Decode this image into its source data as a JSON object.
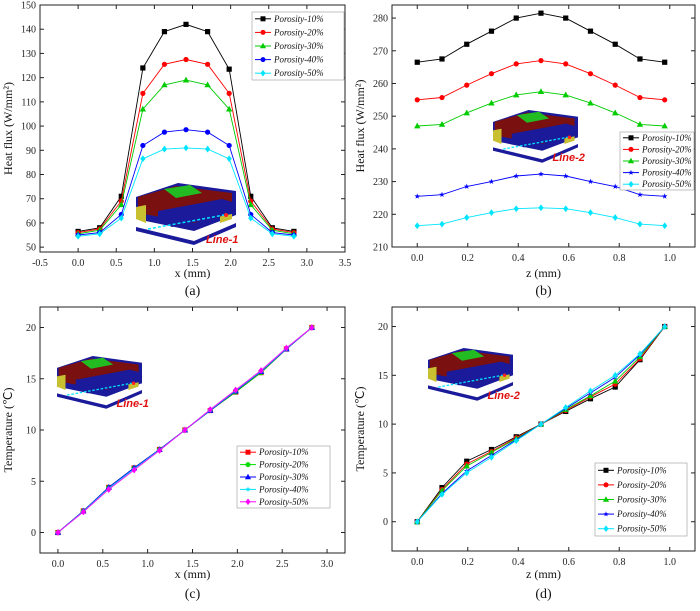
{
  "chart_data": [
    {
      "id": "a",
      "type": "line",
      "panel_label": "(a)",
      "xlabel": "x (mm)",
      "ylabel": "Heat flux (W/mm²)",
      "xlim": [
        -0.5,
        3.5
      ],
      "ylim": [
        48,
        150
      ],
      "xticks": [
        -0.5,
        0.0,
        0.5,
        1.0,
        1.5,
        2.0,
        2.5,
        3.0,
        3.5
      ],
      "xtick_labels": [
        "-0.5",
        "0.0",
        "0.5",
        "1.0",
        "1.5",
        "2.0",
        "2.5",
        "3.0",
        "3.5"
      ],
      "yticks": [
        50,
        60,
        70,
        80,
        90,
        100,
        110,
        120,
        130,
        140,
        150
      ],
      "ytick_labels": [
        "50",
        "60",
        "70",
        "80",
        "90",
        "100",
        "110",
        "120",
        "130",
        "140",
        "150"
      ],
      "legend_position": "top-right",
      "inset_label": "Line-1",
      "x": [
        0.0,
        0.283,
        0.566,
        0.849,
        1.132,
        1.415,
        1.698,
        1.981,
        2.264,
        2.547,
        2.83
      ],
      "series": [
        {
          "name": "Porosity-10%",
          "color": "#000000",
          "marker": "square",
          "values": [
            56.5,
            58,
            71,
            124,
            139,
            142,
            139,
            123.5,
            71,
            58,
            56.5
          ]
        },
        {
          "name": "Porosity-20%",
          "color": "#ff0000",
          "marker": "circle",
          "values": [
            56,
            57.5,
            69,
            113.5,
            125.5,
            127.5,
            125.5,
            113.5,
            69,
            57.5,
            56
          ]
        },
        {
          "name": "Porosity-30%",
          "color": "#00cc00",
          "marker": "triangle",
          "values": [
            55.5,
            57,
            67.5,
            107,
            117,
            119,
            117,
            107,
            67.5,
            57,
            55.5
          ]
        },
        {
          "name": "Porosity-40%",
          "color": "#0000ff",
          "marker": "circle",
          "values": [
            55,
            56,
            63.5,
            92,
            97.5,
            98.5,
            97.5,
            92,
            63.5,
            56,
            55
          ]
        },
        {
          "name": "Porosity-50%",
          "color": "#00e5ff",
          "marker": "diamond",
          "values": [
            54.5,
            55.5,
            62,
            86.5,
            90.5,
            91,
            90.5,
            86.5,
            62,
            55.5,
            54.5
          ]
        }
      ]
    },
    {
      "id": "b",
      "type": "line",
      "panel_label": "(b)",
      "xlabel": "z (mm)",
      "ylabel": "Heat flux (W/mm²)",
      "xlim": [
        -0.1,
        1.1
      ],
      "ylim": [
        210,
        284
      ],
      "xticks": [
        0.0,
        0.2,
        0.4,
        0.6,
        0.8,
        1.0
      ],
      "xtick_labels": [
        "0.0",
        "0.2",
        "0.4",
        "0.6",
        "0.8",
        "1.0"
      ],
      "yticks": [
        210,
        220,
        230,
        240,
        250,
        260,
        270,
        280
      ],
      "ytick_labels": [
        "210",
        "220",
        "230",
        "240",
        "250",
        "260",
        "270",
        "280"
      ],
      "legend_position": "right",
      "inset_label": "Line-2",
      "x": [
        0.0,
        0.098,
        0.196,
        0.294,
        0.392,
        0.49,
        0.588,
        0.686,
        0.784,
        0.882,
        0.98
      ],
      "series": [
        {
          "name": "Porosity-10%",
          "color": "#000000",
          "marker": "square",
          "values": [
            266.5,
            267.5,
            272,
            276,
            280,
            281.5,
            280,
            276,
            272,
            267.5,
            266.5
          ]
        },
        {
          "name": "Porosity-20%",
          "color": "#ff0000",
          "marker": "circle",
          "values": [
            255,
            255.7,
            259.5,
            263,
            266,
            267,
            266,
            263,
            259.5,
            255.7,
            255
          ]
        },
        {
          "name": "Porosity-30%",
          "color": "#00cc00",
          "marker": "triangle",
          "values": [
            247,
            247.5,
            251,
            254,
            256.5,
            257.5,
            256.5,
            254,
            251,
            247.5,
            247
          ]
        },
        {
          "name": "Porosity-40%",
          "color": "#0000ff",
          "marker": "star",
          "values": [
            225.5,
            226,
            228.5,
            230,
            231.7,
            232.3,
            231.7,
            230,
            228.5,
            226,
            225.5
          ]
        },
        {
          "name": "Porosity-50%",
          "color": "#00e5ff",
          "marker": "diamond",
          "values": [
            216.5,
            217,
            219,
            220.5,
            221.7,
            222,
            221.7,
            220.5,
            219,
            217,
            216.5
          ]
        }
      ]
    },
    {
      "id": "c",
      "type": "line",
      "panel_label": "(c)",
      "xlabel": "x (mm)",
      "ylabel": "Temperature (℃)",
      "xlim": [
        -0.2,
        3.2
      ],
      "ylim": [
        -2,
        22
      ],
      "xticks": [
        0.0,
        0.5,
        1.0,
        1.5,
        2.0,
        2.5,
        3.0
      ],
      "xtick_labels": [
        "0.0",
        "0.5",
        "1.0",
        "1.5",
        "2.0",
        "2.5",
        "3.0"
      ],
      "yticks": [
        0,
        5,
        10,
        15,
        20
      ],
      "ytick_labels": [
        "0",
        "5",
        "10",
        "15",
        "20"
      ],
      "legend_position": "lower-right",
      "inset_label": "Line-1",
      "x": [
        0.0,
        0.283,
        0.566,
        0.849,
        1.132,
        1.415,
        1.698,
        1.981,
        2.264,
        2.547,
        2.83
      ],
      "series": [
        {
          "name": "Porosity-10%",
          "color": "#ff0000",
          "marker": "square",
          "values": [
            0,
            2.1,
            4.4,
            6.3,
            8.1,
            10,
            11.9,
            13.7,
            15.6,
            17.9,
            20
          ]
        },
        {
          "name": "Porosity-20%",
          "color": "#00dd00",
          "marker": "circle",
          "values": [
            0,
            2.1,
            4.4,
            6.3,
            8.1,
            10,
            11.9,
            13.7,
            15.6,
            17.9,
            20
          ]
        },
        {
          "name": "Porosity-30%",
          "color": "#0000ff",
          "marker": "triangle",
          "values": [
            0,
            2.1,
            4.4,
            6.3,
            8.1,
            10,
            11.9,
            13.8,
            15.7,
            17.9,
            20
          ]
        },
        {
          "name": "Porosity-40%",
          "color": "#00e5ff",
          "marker": "star",
          "values": [
            0,
            2.05,
            4.3,
            6.2,
            8.05,
            10,
            11.95,
            13.85,
            15.75,
            17.95,
            20
          ]
        },
        {
          "name": "Porosity-50%",
          "color": "#ff00ff",
          "marker": "diamond",
          "values": [
            0,
            2.0,
            4.2,
            6.1,
            8.0,
            10,
            12.0,
            13.9,
            15.8,
            18.0,
            20
          ]
        }
      ]
    },
    {
      "id": "d",
      "type": "line",
      "panel_label": "(d)",
      "xlabel": "z (mm)",
      "ylabel": "Temperature (℃)",
      "xlim": [
        -0.1,
        1.1
      ],
      "ylim": [
        -3,
        22
      ],
      "xticks": [
        0.0,
        0.2,
        0.4,
        0.6,
        0.8,
        1.0
      ],
      "xtick_labels": [
        "0.0",
        "0.2",
        "0.4",
        "0.6",
        "0.8",
        "1.0"
      ],
      "yticks": [
        0,
        5,
        10,
        15,
        20
      ],
      "ytick_labels": [
        "0",
        "5",
        "10",
        "15",
        "20"
      ],
      "legend_position": "lower-right",
      "inset_label": "Line-2",
      "x": [
        0.0,
        0.098,
        0.196,
        0.294,
        0.392,
        0.49,
        0.588,
        0.686,
        0.784,
        0.882,
        0.98
      ],
      "series": [
        {
          "name": "Porosity-10%",
          "color": "#000000",
          "marker": "square",
          "values": [
            0,
            3.5,
            6.2,
            7.4,
            8.7,
            10,
            11.3,
            12.6,
            13.8,
            16.6,
            20
          ]
        },
        {
          "name": "Porosity-20%",
          "color": "#ff0000",
          "marker": "circle",
          "values": [
            0,
            3.3,
            5.9,
            7.2,
            8.6,
            10,
            11.4,
            12.8,
            14.1,
            16.7,
            20
          ]
        },
        {
          "name": "Porosity-30%",
          "color": "#00cc00",
          "marker": "triangle",
          "values": [
            0,
            3.2,
            5.7,
            7.1,
            8.5,
            10,
            11.5,
            12.9,
            14.4,
            16.9,
            20
          ]
        },
        {
          "name": "Porosity-40%",
          "color": "#0000ff",
          "marker": "star",
          "values": [
            0,
            2.9,
            5.2,
            6.8,
            8.4,
            10,
            11.6,
            13.2,
            14.8,
            17.1,
            20
          ]
        },
        {
          "name": "Porosity-50%",
          "color": "#00e5ff",
          "marker": "diamond",
          "values": [
            0,
            2.8,
            5.0,
            6.6,
            8.3,
            10,
            11.7,
            13.4,
            15.0,
            17.2,
            20
          ]
        }
      ]
    }
  ]
}
